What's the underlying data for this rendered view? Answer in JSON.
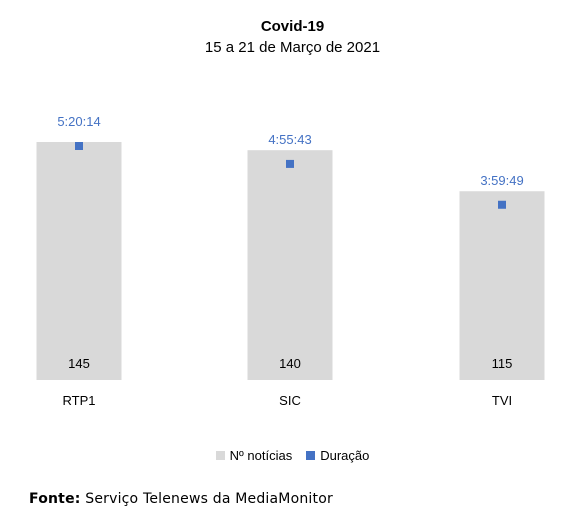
{
  "title": "Covid-19",
  "subtitle": "15 a 21 de Março de 2021",
  "colors": {
    "bar": "#d9d9d9",
    "marker": "#4472c4",
    "duration_label": "#4472c4"
  },
  "legend": {
    "bars": "Nº notícias",
    "markers": "Duração"
  },
  "source": {
    "label": "Fonte:",
    "text": " Serviço Telenews da MediaMonitor"
  },
  "chart_data": {
    "type": "bar",
    "title": "Covid-19",
    "subtitle": "15 a 21 de Março de 2021",
    "categories": [
      "RTP1",
      "SIC",
      "TVI"
    ],
    "series": [
      {
        "name": "Nº notícias",
        "type": "bar",
        "values": [
          145,
          140,
          115
        ],
        "labels": [
          "145",
          "140",
          "115"
        ]
      },
      {
        "name": "Duração",
        "type": "scatter",
        "values": [
          "5:20:14",
          "4:55:43",
          "3:59:49"
        ],
        "labels": [
          "5:20:14",
          "4:55:43",
          "3:59:49"
        ]
      }
    ],
    "legend_position": "bottom",
    "grid": false
  }
}
